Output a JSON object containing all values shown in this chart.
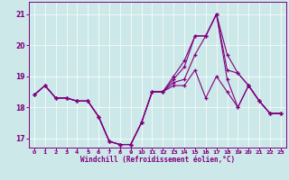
{
  "xlabel": "Windchill (Refroidissement éolien,°C)",
  "background_color": "#cce8e8",
  "line_color": "#800080",
  "xlim": [
    -0.5,
    23.5
  ],
  "ylim": [
    16.7,
    21.4
  ],
  "yticks": [
    17,
    18,
    19,
    20,
    21
  ],
  "xticks": [
    0,
    1,
    2,
    3,
    4,
    5,
    6,
    7,
    8,
    9,
    10,
    11,
    12,
    13,
    14,
    15,
    16,
    17,
    18,
    19,
    20,
    21,
    22,
    23
  ],
  "series": [
    [
      18.4,
      18.7,
      18.3,
      18.3,
      18.2,
      18.2,
      17.7,
      16.9,
      16.8,
      16.8,
      17.5,
      18.5,
      18.5,
      19.0,
      19.5,
      20.3,
      20.3,
      21.0,
      19.7,
      19.1,
      18.7,
      18.2,
      17.8,
      17.8
    ],
    [
      18.4,
      18.7,
      18.3,
      18.3,
      18.2,
      18.2,
      17.7,
      16.9,
      16.8,
      16.8,
      17.5,
      18.5,
      18.5,
      18.9,
      19.3,
      20.3,
      20.3,
      21.0,
      19.2,
      19.1,
      18.7,
      18.2,
      17.8,
      17.8
    ],
    [
      18.4,
      18.7,
      18.3,
      18.3,
      18.2,
      18.2,
      17.7,
      16.9,
      16.8,
      16.8,
      17.5,
      18.5,
      18.5,
      18.8,
      18.9,
      19.7,
      20.3,
      21.0,
      18.9,
      18.0,
      18.7,
      18.2,
      17.8,
      17.8
    ],
    [
      18.4,
      18.7,
      18.3,
      18.3,
      18.2,
      18.2,
      17.7,
      16.9,
      16.8,
      16.8,
      17.5,
      18.5,
      18.5,
      18.7,
      18.7,
      19.2,
      18.3,
      19.0,
      18.5,
      18.0,
      18.7,
      18.2,
      17.8,
      17.8
    ]
  ]
}
